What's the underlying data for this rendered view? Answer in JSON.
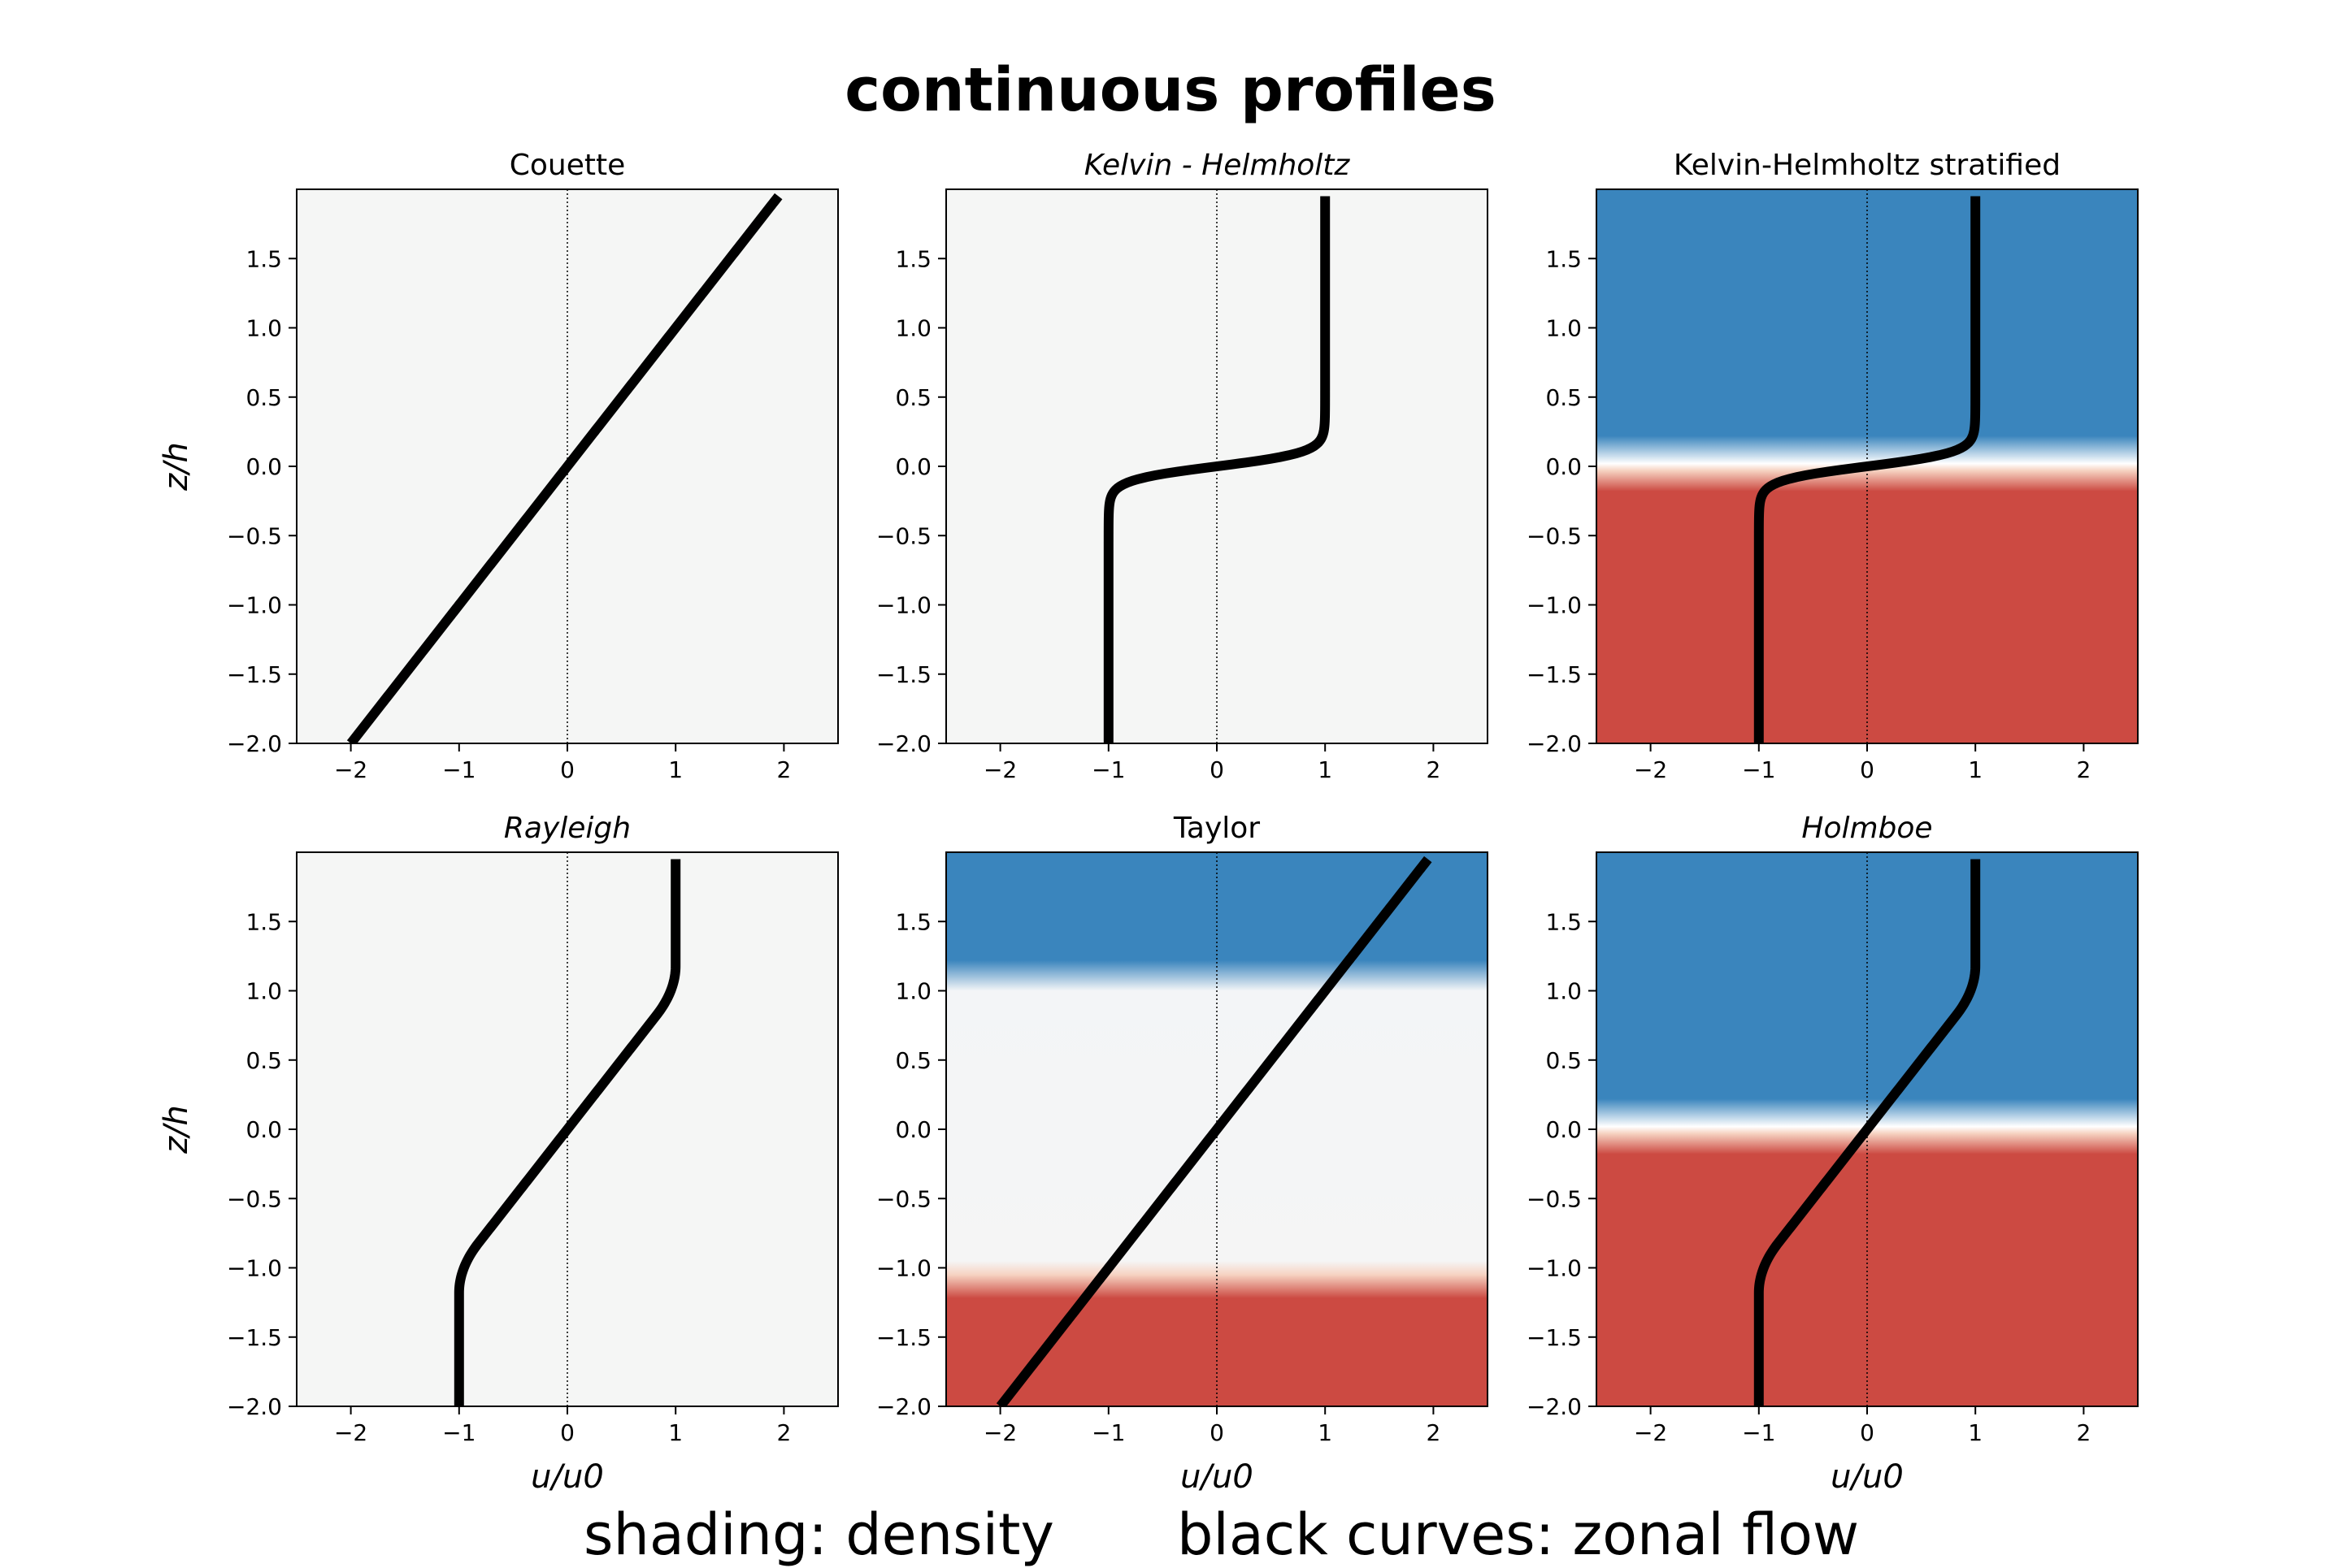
{
  "figure": {
    "title": "continuous profiles",
    "footer_left": "shading: density",
    "footer_right": "black curves: zonal flow"
  },
  "colors": {
    "upper_fluid": "#3a85bd",
    "lower_fluid": "#cc4a42",
    "neutral": "#f5f6f5",
    "interface": "#ffffff",
    "curve": "#000000"
  },
  "chart_data": [
    {
      "type": "line",
      "title": "Couette",
      "title_style": "normal",
      "xlabel": "",
      "ylabel": "z/h",
      "xlim": [
        -2.5,
        2.5
      ],
      "ylim": [
        -2.0,
        2.0
      ],
      "xticks": [
        -2,
        -1,
        0,
        1,
        2
      ],
      "yticks": [
        -2.0,
        -1.5,
        -1.0,
        -0.5,
        0.0,
        0.5,
        1.0,
        1.5
      ],
      "profile": {
        "kind": "linear",
        "slope": 1.0
      },
      "shading": {
        "kind": "uniform"
      },
      "series": [
        {
          "name": "zonal flow u/u0",
          "z": [
            -2.0,
            1.95
          ],
          "u": [
            -2.0,
            1.95
          ]
        }
      ]
    },
    {
      "type": "line",
      "title": "Kelvin - Helmholtz",
      "title_style": "italic",
      "xlabel": "",
      "ylabel": "",
      "xlim": [
        -2.5,
        2.5
      ],
      "ylim": [
        -2.0,
        2.0
      ],
      "xticks": [
        -2,
        -1,
        0,
        1,
        2
      ],
      "yticks": [
        -2.0,
        -1.5,
        -1.0,
        -0.5,
        0.0,
        0.5,
        1.0,
        1.5
      ],
      "profile": {
        "kind": "tanh",
        "width": 0.1
      },
      "shading": {
        "kind": "uniform"
      },
      "series": [
        {
          "name": "zonal flow u/u0",
          "z_top": 1.95,
          "z_bottom": -2.0,
          "u_top": 1.0,
          "u_bottom": -1.0
        }
      ]
    },
    {
      "type": "line",
      "title": "Kelvin-Helmholtz stratified",
      "title_style": "normal",
      "xlabel": "",
      "ylabel": "",
      "xlim": [
        -2.5,
        2.5
      ],
      "ylim": [
        -2.0,
        2.0
      ],
      "xticks": [
        -2,
        -1,
        0,
        1,
        2
      ],
      "yticks": [
        -2.0,
        -1.5,
        -1.0,
        -0.5,
        0.0,
        0.5,
        1.0,
        1.5
      ],
      "profile": {
        "kind": "tanh",
        "width": 0.1
      },
      "shading": {
        "kind": "two_layer",
        "interfaces": [
          0.0
        ]
      },
      "series": [
        {
          "name": "zonal flow u/u0",
          "z_top": 1.95,
          "z_bottom": -2.0,
          "u_top": 1.0,
          "u_bottom": -1.0
        }
      ]
    },
    {
      "type": "line",
      "title": "Rayleigh",
      "title_style": "italic",
      "xlabel": "u/u0",
      "ylabel": "z/h",
      "xlim": [
        -2.5,
        2.5
      ],
      "ylim": [
        -2.0,
        2.0
      ],
      "xticks": [
        -2,
        -1,
        0,
        1,
        2
      ],
      "yticks": [
        -2.0,
        -1.5,
        -1.0,
        -0.5,
        0.0,
        0.5,
        1.0,
        1.5
      ],
      "profile": {
        "kind": "piecewise_linear",
        "half_depth": 1.0
      },
      "shading": {
        "kind": "uniform"
      },
      "series": [
        {
          "name": "zonal flow u/u0",
          "z_top": 1.95,
          "z_bottom": -2.0,
          "u_top": 1.0,
          "u_bottom": -1.0
        }
      ]
    },
    {
      "type": "line",
      "title": "Taylor",
      "title_style": "normal",
      "xlabel": "u/u0",
      "ylabel": "",
      "xlim": [
        -2.5,
        2.5
      ],
      "ylim": [
        -2.0,
        2.0
      ],
      "xticks": [
        -2,
        -1,
        0,
        1,
        2
      ],
      "yticks": [
        -2.0,
        -1.5,
        -1.0,
        -0.5,
        0.0,
        0.5,
        1.0,
        1.5
      ],
      "profile": {
        "kind": "linear",
        "slope": 1.0
      },
      "shading": {
        "kind": "three_layer",
        "interfaces": [
          1.0,
          -1.0
        ]
      },
      "series": [
        {
          "name": "zonal flow u/u0",
          "z": [
            -2.0,
            1.95
          ],
          "u": [
            -2.0,
            1.95
          ]
        }
      ]
    },
    {
      "type": "line",
      "title": "Holmboe",
      "title_style": "italic",
      "xlabel": "u/u0",
      "ylabel": "",
      "xlim": [
        -2.5,
        2.5
      ],
      "ylim": [
        -2.0,
        2.0
      ],
      "xticks": [
        -2,
        -1,
        0,
        1,
        2
      ],
      "yticks": [
        -2.0,
        -1.5,
        -1.0,
        -0.5,
        0.0,
        0.5,
        1.0,
        1.5
      ],
      "profile": {
        "kind": "piecewise_linear",
        "half_depth": 1.0
      },
      "shading": {
        "kind": "two_layer",
        "interfaces": [
          0.0
        ]
      },
      "series": [
        {
          "name": "zonal flow u/u0",
          "z_top": 1.95,
          "z_bottom": -2.0,
          "u_top": 1.0,
          "u_bottom": -1.0
        }
      ]
    }
  ]
}
